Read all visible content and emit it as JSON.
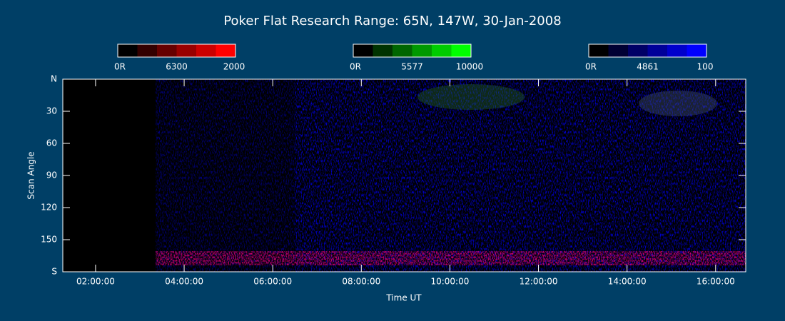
{
  "chart_data": {
    "type": "keogram",
    "title": "Poker Flat Research Range: 65N, 147W, 30-Jan-2008",
    "xlabel": "Time UT",
    "ylabel": "Scan Angle",
    "xlim": [
      1.26,
      16.68
    ],
    "xticks": [
      {
        "value": 2,
        "label": "02:00:00"
      },
      {
        "value": 4,
        "label": "04:00:00"
      },
      {
        "value": 6,
        "label": "06:00:00"
      },
      {
        "value": 8,
        "label": "08:00:00"
      },
      {
        "value": 10,
        "label": "10:00:00"
      },
      {
        "value": 12,
        "label": "12:00:00"
      },
      {
        "value": 14,
        "label": "14:00:00"
      },
      {
        "value": 16,
        "label": "16:00:00"
      }
    ],
    "ylim": [
      0,
      180
    ],
    "yticks": [
      {
        "value": 0,
        "label": "N"
      },
      30,
      60,
      90,
      120,
      150,
      {
        "value": 180,
        "label": "S"
      }
    ],
    "colorbars": [
      {
        "labels": [
          "0R",
          "6300",
          "2000"
        ],
        "colors": [
          "#000000",
          "#330000",
          "#660000",
          "#990000",
          "#cc0000",
          "#ff0000"
        ]
      },
      {
        "labels": [
          "0R",
          "5577",
          "10000"
        ],
        "colors": [
          "#000000",
          "#003300",
          "#006600",
          "#009900",
          "#00cc00",
          "#00ff00"
        ]
      },
      {
        "labels": [
          "0R",
          "4861",
          "100"
        ],
        "colors": [
          "#000000",
          "#000033",
          "#000066",
          "#000099",
          "#0000cc",
          "#0000ff"
        ]
      }
    ]
  }
}
